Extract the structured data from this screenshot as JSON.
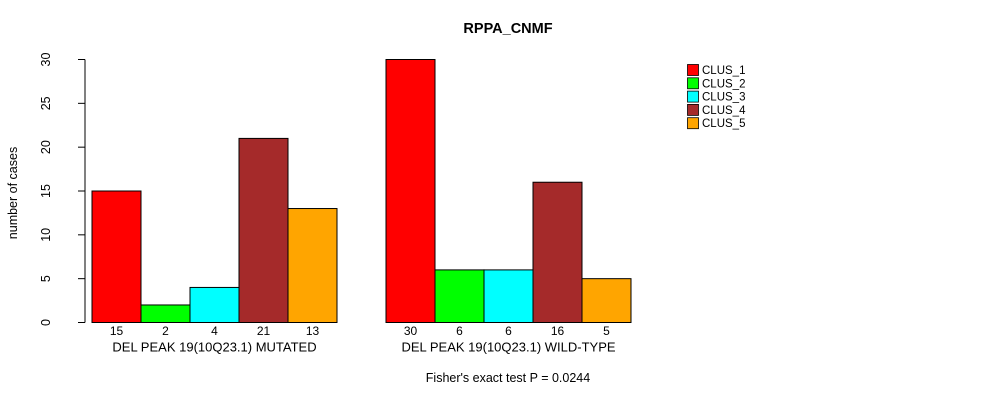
{
  "chart_data": {
    "type": "bar",
    "title": "RPPA_CNMF",
    "ylabel": "number of cases",
    "xlabel": "",
    "ylim": [
      0,
      30
    ],
    "yticks": [
      0,
      5,
      10,
      15,
      20,
      25,
      30
    ],
    "grid": false,
    "legend_position": "right",
    "series_names": [
      "CLUS_1",
      "CLUS_2",
      "CLUS_3",
      "CLUS_4",
      "CLUS_5"
    ],
    "series_colors": [
      "#FF0000",
      "#00FF00",
      "#00FFFF",
      "#A52A2A",
      "#FFA500"
    ],
    "groups": [
      {
        "label": "DEL PEAK 19(10Q23.1) MUTATED",
        "values": [
          15,
          2,
          4,
          21,
          13
        ]
      },
      {
        "label": "DEL PEAK 19(10Q23.1) WILD-TYPE",
        "values": [
          30,
          6,
          6,
          16,
          5
        ]
      }
    ],
    "annotation": "Fisher's exact test P = 0.0244"
  },
  "colors": {
    "background": "#FFFFFF",
    "axis": "#000000",
    "bar_border": "#000000",
    "text": "#000000"
  }
}
